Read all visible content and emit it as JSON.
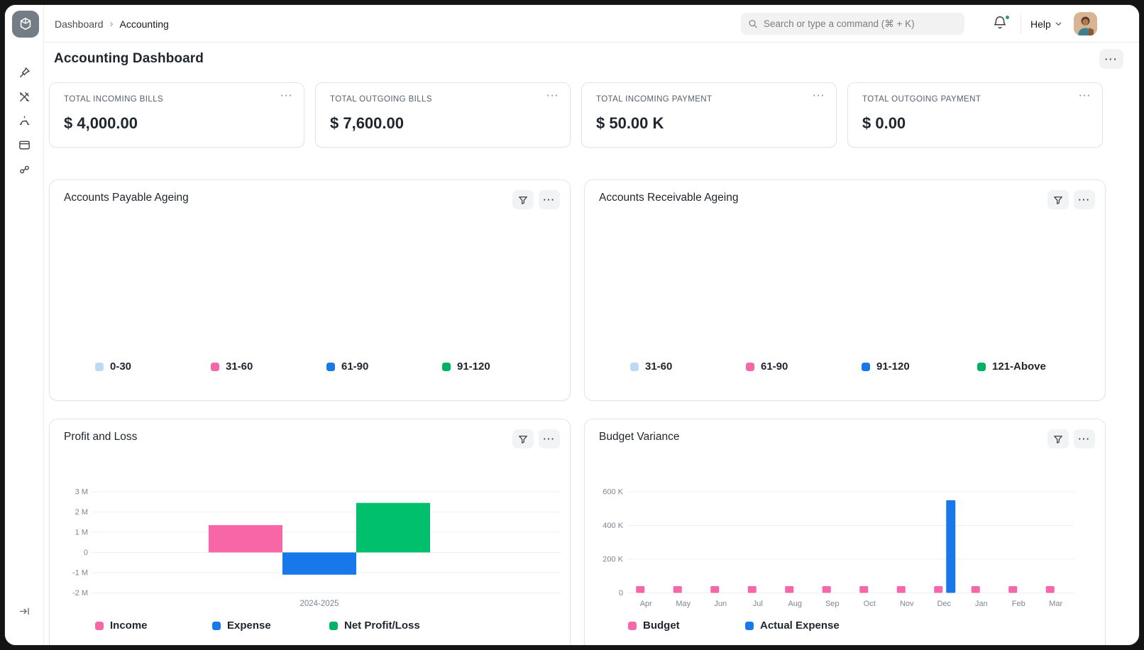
{
  "topbar": {
    "breadcrumb": {
      "items": [
        "Dashboard",
        "Accounting"
      ],
      "separator": "›"
    },
    "search": {
      "placeholder": "Search or type a command (⌘ + K)"
    },
    "help_label": "Help"
  },
  "page": {
    "title": "Accounting Dashboard"
  },
  "ui": {
    "ellipsis": "···"
  },
  "icons": {
    "logo": "cube-box",
    "sidebar": [
      "pin",
      "tools",
      "bell",
      "window",
      "connector"
    ],
    "search": "magnifier",
    "notifications": "bell-with-green-dot",
    "help_chevron": "chevron-down",
    "chart_filter": "funnel",
    "chart_menu": "ellipsis",
    "collapse": "arrow-to-bar"
  },
  "stat_cards": [
    {
      "label": "TOTAL INCOMING BILLS",
      "value": "$ 4,000.00"
    },
    {
      "label": "TOTAL OUTGOING BILLS",
      "value": "$ 7,600.00"
    },
    {
      "label": "TOTAL INCOMING PAYMENT",
      "value": "$ 50.00 K"
    },
    {
      "label": "TOTAL OUTGOING PAYMENT",
      "value": "$ 0.00"
    }
  ],
  "chart_data": [
    {
      "id": "payable_ageing",
      "type": "bar",
      "title": "Accounts Payable Ageing",
      "categories": [
        "0-30",
        "31-60",
        "61-90",
        "91-120"
      ],
      "values": [],
      "legend_position": "bottom",
      "legend": [
        {
          "label": "0-30",
          "color": "#bcd9f5"
        },
        {
          "label": "31-60",
          "color": "#f766a7"
        },
        {
          "label": "61-90",
          "color": "#1878e9"
        },
        {
          "label": "91-120",
          "color": "#00b263"
        }
      ]
    },
    {
      "id": "receivable_ageing",
      "type": "bar",
      "title": "Accounts Receivable Ageing",
      "categories": [
        "31-60",
        "61-90",
        "91-120",
        "121-Above"
      ],
      "values": [],
      "legend_position": "bottom",
      "legend": [
        {
          "label": "31-60",
          "color": "#bcd9f5"
        },
        {
          "label": "61-90",
          "color": "#f766a7"
        },
        {
          "label": "91-120",
          "color": "#1878e9"
        },
        {
          "label": "121-Above",
          "color": "#00b263"
        }
      ]
    },
    {
      "id": "profit_loss",
      "type": "bar",
      "title": "Profit and Loss",
      "categories": [
        "2024-2025"
      ],
      "xlabel": "2024-2025",
      "grid": true,
      "legend_position": "bottom",
      "ylim": [
        -2000000,
        3000000
      ],
      "yticks": [
        {
          "v": 3000000,
          "label": "3 M"
        },
        {
          "v": 2000000,
          "label": "2 M"
        },
        {
          "v": 1000000,
          "label": "1 M"
        },
        {
          "v": 0,
          "label": "0"
        },
        {
          "v": -1000000,
          "label": "-1 M"
        },
        {
          "v": -2000000,
          "label": "-2 M"
        }
      ],
      "series": [
        {
          "name": "Income",
          "color": "#f766a7",
          "values": [
            1350000
          ]
        },
        {
          "name": "Expense",
          "color": "#1878e9",
          "values": [
            -1100000
          ]
        },
        {
          "name": "Net Profit/Loss",
          "color": "#00c06e",
          "values": [
            2450000
          ]
        }
      ]
    },
    {
      "id": "budget_variance",
      "type": "bar",
      "title": "Budget Variance",
      "categories": [
        "Apr",
        "May",
        "Jun",
        "Jul",
        "Aug",
        "Sep",
        "Oct",
        "Nov",
        "Dec",
        "Jan",
        "Feb",
        "Mar"
      ],
      "grid": true,
      "legend_position": "bottom",
      "ylim": [
        0,
        600000
      ],
      "yticks": [
        {
          "v": 600000,
          "label": "600 K"
        },
        {
          "v": 400000,
          "label": "400 K"
        },
        {
          "v": 200000,
          "label": "200 K"
        },
        {
          "v": 0,
          "label": "0"
        }
      ],
      "series": [
        {
          "name": "Budget",
          "color": "#f766a7",
          "values": [
            40000,
            40000,
            40000,
            40000,
            40000,
            40000,
            40000,
            40000,
            40000,
            40000,
            40000,
            40000
          ]
        },
        {
          "name": "Actual Expense",
          "color": "#1878e9",
          "values": [
            0,
            0,
            0,
            0,
            0,
            0,
            0,
            0,
            550000,
            0,
            0,
            0
          ]
        }
      ]
    }
  ]
}
